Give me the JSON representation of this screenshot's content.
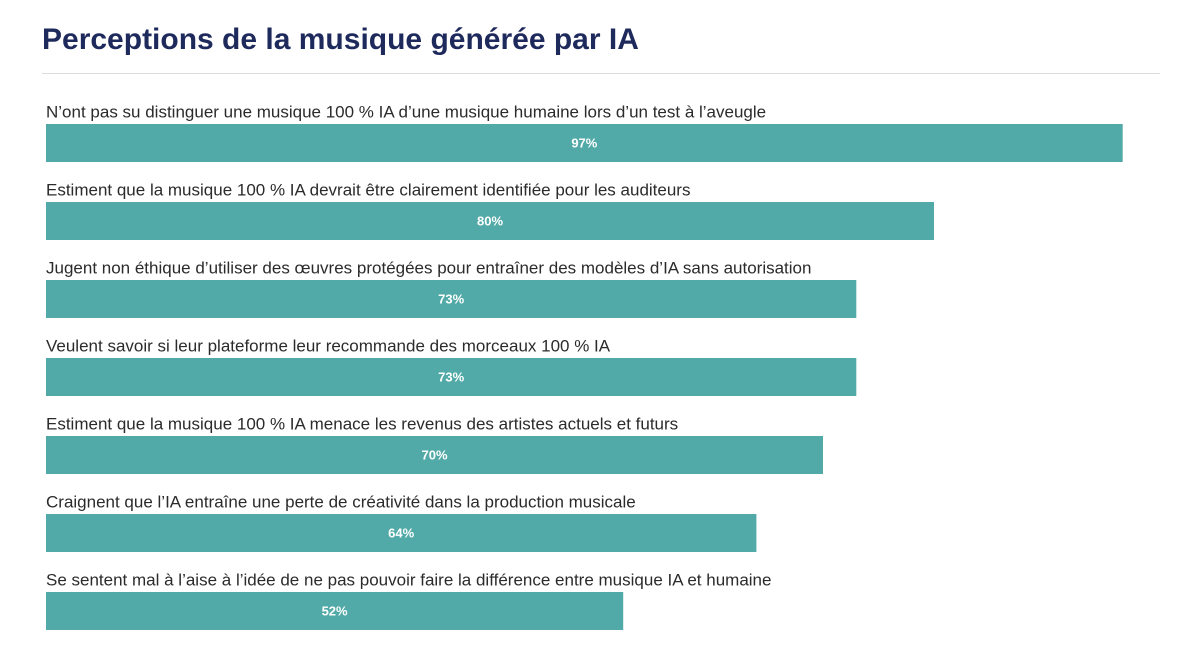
{
  "chart_data": {
    "type": "bar",
    "orientation": "horizontal",
    "title": "Perceptions de la musique générée par IA",
    "categories": [
      "N’ont pas su distinguer une musique 100 % IA d’une musique humaine lors d’un test à l’aveugle",
      "Estiment que la musique 100 % IA devrait être clairement identifiée pour les auditeurs",
      "Jugent non éthique d’utiliser des œuvres protégées pour entraîner des modèles d’IA sans autorisation",
      "Veulent savoir si leur plateforme leur recommande des morceaux 100 % IA",
      "Estiment que la musique 100 % IA menace les revenus des artistes actuels et futurs",
      "Craignent que l’IA entraîne une perte de créativité dans la production musicale",
      "Se sentent mal à l’aise à l’idée de ne pas pouvoir faire la différence entre musique IA et humaine"
    ],
    "values": [
      97,
      80,
      73,
      73,
      70,
      64,
      52
    ],
    "value_labels": [
      "97%",
      "80%",
      "73%",
      "73%",
      "70%",
      "64%",
      "52%"
    ],
    "color": "#52aaa8"
  }
}
